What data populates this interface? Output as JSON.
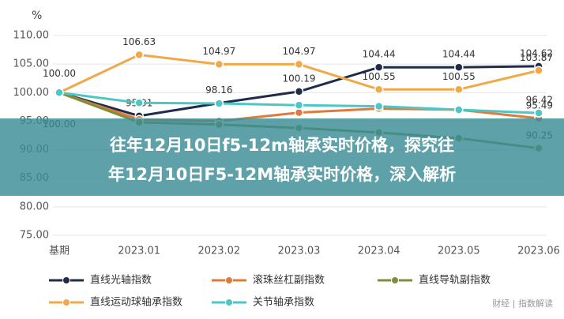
{
  "chart_data": {
    "type": "line",
    "title_lines": [
      "往年12月10日f5-12m轴承实时价格，探究往",
      "年12月10日F5-12M轴承实时价格，深入解析"
    ],
    "y_label": "%",
    "watermark": "财经 | 指数解读",
    "categories": [
      "基期",
      "2023.01",
      "2023.02",
      "2023.03",
      "2023.04",
      "2023.05",
      "2023.06"
    ],
    "ylim": [
      75,
      110
    ],
    "yticks": [
      {
        "value": 75,
        "label": "75.00"
      },
      {
        "value": 80,
        "label": "80.00"
      },
      {
        "value": 85,
        "label": "85.00"
      },
      {
        "value": 90,
        "label": "90.00"
      },
      {
        "value": 95,
        "label": "95.00"
      },
      {
        "value": 100,
        "label": "100.00"
      },
      {
        "value": 105,
        "label": "105.00"
      },
      {
        "value": 110,
        "label": "110.00"
      }
    ],
    "grid": true,
    "series": [
      {
        "name": "直线光轴指数",
        "color": "#1f2b48",
        "values": [
          100,
          95.91,
          98.16,
          100.19,
          104.44,
          104.44,
          104.62
        ],
        "value_labels": [
          "100.00",
          "95.91",
          "98.16",
          "100.19",
          "104.44",
          "104.44",
          "104.62"
        ]
      },
      {
        "name": "滚珠丝杠副指数",
        "color": "#e07a3a",
        "values": [
          100,
          95.3,
          95.0,
          96.5,
          97.2,
          97.0,
          95.49
        ],
        "value_labels": [
          "100.00",
          null,
          null,
          null,
          null,
          null,
          "95.49"
        ]
      },
      {
        "name": "直线导轨副指数",
        "color": "#7d8f3c",
        "values": [
          100,
          94.8,
          94.4,
          93.8,
          93.0,
          92.0,
          90.25
        ],
        "value_labels": [
          null,
          null,
          null,
          null,
          null,
          null,
          "90.25"
        ]
      },
      {
        "name": "直线运动球轴承指数",
        "color": "#f0a848",
        "values": [
          100,
          106.63,
          104.97,
          104.97,
          100.55,
          100.55,
          103.87
        ],
        "value_labels": [
          null,
          "106.63",
          "104.97",
          "104.97",
          "100.55",
          "100.55",
          "103.87"
        ]
      },
      {
        "name": "关节轴承指数",
        "color": "#4fc6c6",
        "values": [
          100,
          98.2,
          98.1,
          97.8,
          97.6,
          97.0,
          96.42
        ],
        "value_labels": [
          null,
          null,
          null,
          null,
          null,
          null,
          "96.42"
        ]
      }
    ]
  }
}
